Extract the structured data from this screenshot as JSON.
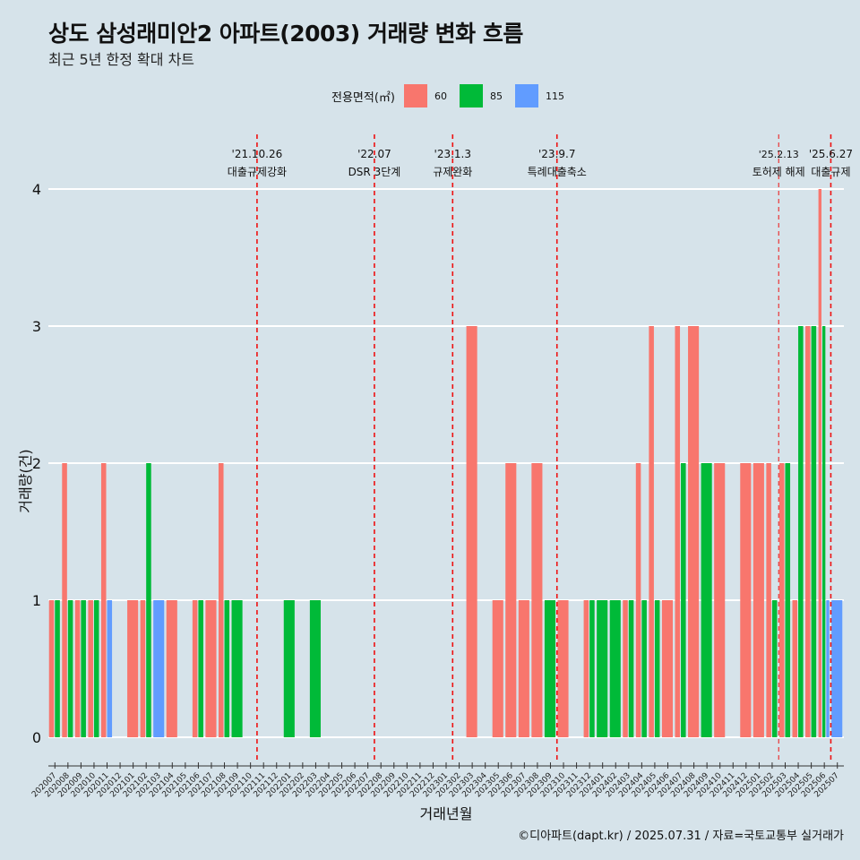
{
  "title": "상도 삼성래미안2 아파트(2003) 거래량 변화 흐름",
  "subtitle": "최근 5년 한정 확대 차트",
  "caption": "©디아파트(dapt.kr) / 2025.07.31 / 자료=국토교통부 실거래가",
  "legend": {
    "title": "전용면적(㎡)",
    "items": [
      {
        "label": "60",
        "color": "#f8766d"
      },
      {
        "label": "85",
        "color": "#00ba38"
      },
      {
        "label": "115",
        "color": "#619cff"
      }
    ]
  },
  "chart_data": {
    "type": "bar",
    "title": "상도 삼성래미안2 아파트(2003) 거래량 변화 흐름",
    "subtitle": "최근 5년 한정 확대 차트",
    "xlabel": "거래년월",
    "ylabel": "거래량(건)",
    "ylim": [
      0,
      4
    ],
    "yticks": [
      0,
      1,
      2,
      3,
      4
    ],
    "grid": true,
    "legend_position": "top",
    "categories": [
      "202007",
      "202008",
      "202009",
      "202010",
      "202011",
      "202012",
      "202101",
      "202102",
      "202103",
      "202104",
      "202105",
      "202106",
      "202107",
      "202108",
      "202109",
      "202110",
      "202111",
      "202112",
      "202201",
      "202202",
      "202203",
      "202204",
      "202205",
      "202206",
      "202207",
      "202208",
      "202209",
      "202210",
      "202211",
      "202212",
      "202301",
      "202302",
      "202303",
      "202304",
      "202305",
      "202306",
      "202307",
      "202308",
      "202309",
      "202310",
      "202311",
      "202312",
      "202401",
      "202402",
      "202403",
      "202404",
      "202405",
      "202406",
      "202407",
      "202408",
      "202409",
      "202410",
      "202411",
      "202412",
      "202501",
      "202502",
      "202503",
      "202504",
      "202505",
      "202506",
      "202507"
    ],
    "series": [
      {
        "name": "60",
        "color": "#f8766d",
        "values": [
          1,
          2,
          1,
          1,
          2,
          0,
          1,
          1,
          0,
          1,
          0,
          1,
          1,
          2,
          0,
          0,
          0,
          0,
          0,
          0,
          0,
          0,
          0,
          0,
          0,
          0,
          0,
          0,
          0,
          0,
          0,
          0,
          3,
          0,
          1,
          2,
          1,
          2,
          0,
          1,
          0,
          1,
          0,
          0,
          1,
          2,
          3,
          1,
          3,
          3,
          0,
          2,
          0,
          2,
          2,
          2,
          2,
          1,
          3,
          4,
          0
        ]
      },
      {
        "name": "85",
        "color": "#00ba38",
        "values": [
          1,
          1,
          1,
          1,
          0,
          0,
          0,
          2,
          0,
          0,
          0,
          1,
          0,
          1,
          1,
          0,
          0,
          0,
          1,
          0,
          1,
          0,
          0,
          0,
          0,
          0,
          0,
          0,
          0,
          0,
          0,
          0,
          0,
          0,
          0,
          0,
          0,
          0,
          1,
          0,
          0,
          1,
          1,
          1,
          1,
          1,
          1,
          0,
          2,
          0,
          2,
          0,
          0,
          0,
          0,
          1,
          2,
          3,
          3,
          3,
          0
        ]
      },
      {
        "name": "115",
        "color": "#619cff",
        "values": [
          0,
          0,
          0,
          0,
          1,
          0,
          0,
          0,
          1,
          0,
          0,
          0,
          0,
          0,
          0,
          0,
          0,
          0,
          0,
          0,
          0,
          0,
          0,
          0,
          0,
          0,
          0,
          0,
          0,
          0,
          0,
          0,
          0,
          0,
          0,
          0,
          0,
          0,
          0,
          0,
          0,
          0,
          0,
          0,
          0,
          0,
          0,
          0,
          0,
          0,
          0,
          0,
          0,
          0,
          0,
          0,
          0,
          0,
          0,
          1,
          1
        ]
      }
    ],
    "events": [
      {
        "date": "'21.10.26",
        "label": "대출규제강화",
        "month": "202110"
      },
      {
        "date": "'22.07",
        "label": "DSR 3단계",
        "month": "202207"
      },
      {
        "date": "'23.1.3",
        "label": "규제완화",
        "month": "202301"
      },
      {
        "date": "'23.9.7",
        "label": "특례대출축소",
        "month": "202309"
      },
      {
        "date": "'25.2.13",
        "label": "토허제 해제",
        "month": "202502"
      },
      {
        "date": "'25.6.27",
        "label": "대출규제",
        "month": "202506"
      }
    ]
  }
}
